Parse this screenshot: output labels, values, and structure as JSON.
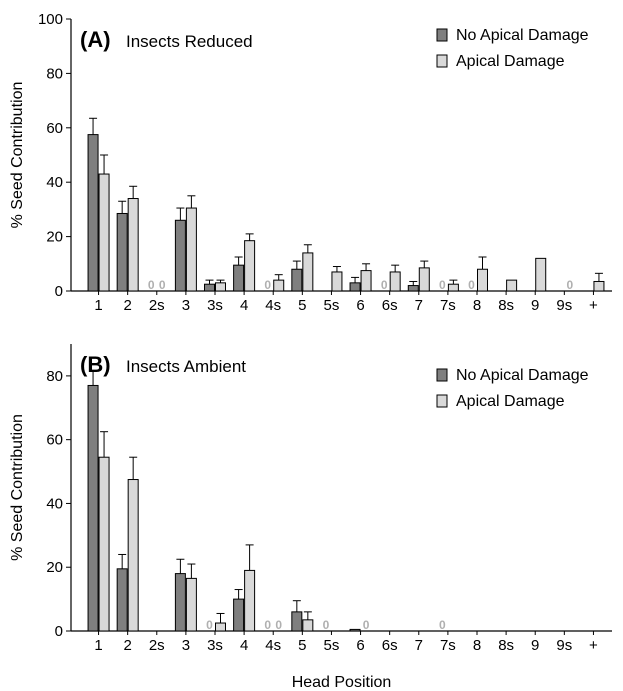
{
  "colors": {
    "no_apical": "#7f7f7f",
    "apical": "#d9d9d9",
    "axis": "#000000",
    "zero_label": "#b0b0b0"
  },
  "chart_data": [
    {
      "type": "bar",
      "panel_label": "(A)",
      "title": "Insects Reduced",
      "xlabel": "",
      "ylabel": "% Seed Contribution",
      "ylim": [
        0,
        100
      ],
      "yticks": [
        0,
        20,
        40,
        60,
        80,
        100
      ],
      "legend_position": "top-right",
      "categories": [
        "1",
        "2",
        "2s",
        "3",
        "3s",
        "4",
        "4s",
        "5",
        "5s",
        "6",
        "6s",
        "7",
        "7s",
        "8",
        "8s",
        "9",
        "9s",
        "+"
      ],
      "series": [
        {
          "name": "No Apical Damage",
          "values": [
            57.5,
            28.5,
            0,
            26,
            2.5,
            9.5,
            0,
            8,
            null,
            3,
            0,
            2,
            0,
            0,
            null,
            null,
            null,
            null
          ],
          "errors": [
            6,
            4.5,
            null,
            4.5,
            1.5,
            3,
            null,
            3,
            null,
            2,
            null,
            1.5,
            null,
            null,
            null,
            null,
            null,
            null
          ]
        },
        {
          "name": "Apical Damage",
          "values": [
            43,
            34,
            0,
            30.5,
            3,
            18.5,
            4,
            14,
            7,
            7.5,
            7,
            8.5,
            2.5,
            8,
            4,
            12,
            0,
            3.5
          ],
          "errors": [
            7,
            4.5,
            null,
            4.5,
            1,
            2.5,
            2,
            3,
            2,
            2.5,
            2.5,
            2.5,
            1.5,
            4.5,
            null,
            null,
            null,
            3
          ]
        }
      ],
      "zero_markers": [
        {
          "category": "2s",
          "series": "No Apical Damage",
          "label": "0"
        },
        {
          "category": "2s",
          "series": "Apical Damage",
          "label": "0"
        },
        {
          "category": "4s",
          "series": "No Apical Damage",
          "label": "0"
        },
        {
          "category": "6s",
          "series": "No Apical Damage",
          "label": "0"
        },
        {
          "category": "7s",
          "series": "No Apical Damage",
          "label": "0"
        },
        {
          "category": "8",
          "series": "No Apical Damage",
          "label": "0"
        },
        {
          "category": "9s",
          "series": "Apical Damage",
          "label": "0"
        }
      ]
    },
    {
      "type": "bar",
      "panel_label": "(B)",
      "title": "Insects Ambient",
      "xlabel": "Head Position",
      "ylabel": "% Seed Contribution",
      "ylim": [
        0,
        90
      ],
      "yticks": [
        0,
        20,
        40,
        60,
        80
      ],
      "legend_position": "top-right",
      "categories": [
        "1",
        "2",
        "2s",
        "3",
        "3s",
        "4",
        "4s",
        "5",
        "5s",
        "6",
        "6s",
        "7",
        "7s",
        "8",
        "8s",
        "9",
        "9s",
        "+"
      ],
      "series": [
        {
          "name": "No Apical Damage",
          "values": [
            77,
            19.5,
            null,
            18,
            0,
            10,
            0,
            6,
            0,
            0.5,
            null,
            null,
            0,
            null,
            null,
            null,
            null,
            null
          ],
          "errors": [
            4.5,
            4.5,
            null,
            4.5,
            null,
            3,
            null,
            3.5,
            null,
            null,
            null,
            null,
            null,
            null,
            null,
            null,
            null,
            null
          ]
        },
        {
          "name": "Apical Damage",
          "values": [
            54.5,
            47.5,
            null,
            16.5,
            2.5,
            19,
            0,
            3.5,
            null,
            0,
            null,
            null,
            null,
            null,
            null,
            null,
            null,
            null
          ],
          "errors": [
            8,
            7,
            null,
            4.5,
            3,
            8,
            null,
            2.5,
            null,
            null,
            null,
            null,
            null,
            null,
            null,
            null,
            null,
            null
          ]
        }
      ],
      "zero_markers": [
        {
          "category": "3s",
          "series": "No Apical Damage",
          "label": "0"
        },
        {
          "category": "4s",
          "series": "No Apical Damage",
          "label": "0"
        },
        {
          "category": "4s",
          "series": "Apical Damage",
          "label": "0"
        },
        {
          "category": "5s",
          "series": "No Apical Damage",
          "label": "0"
        },
        {
          "category": "6",
          "series": "Apical Damage",
          "label": "0"
        },
        {
          "category": "7s",
          "series": "No Apical Damage",
          "label": "0"
        }
      ]
    }
  ]
}
